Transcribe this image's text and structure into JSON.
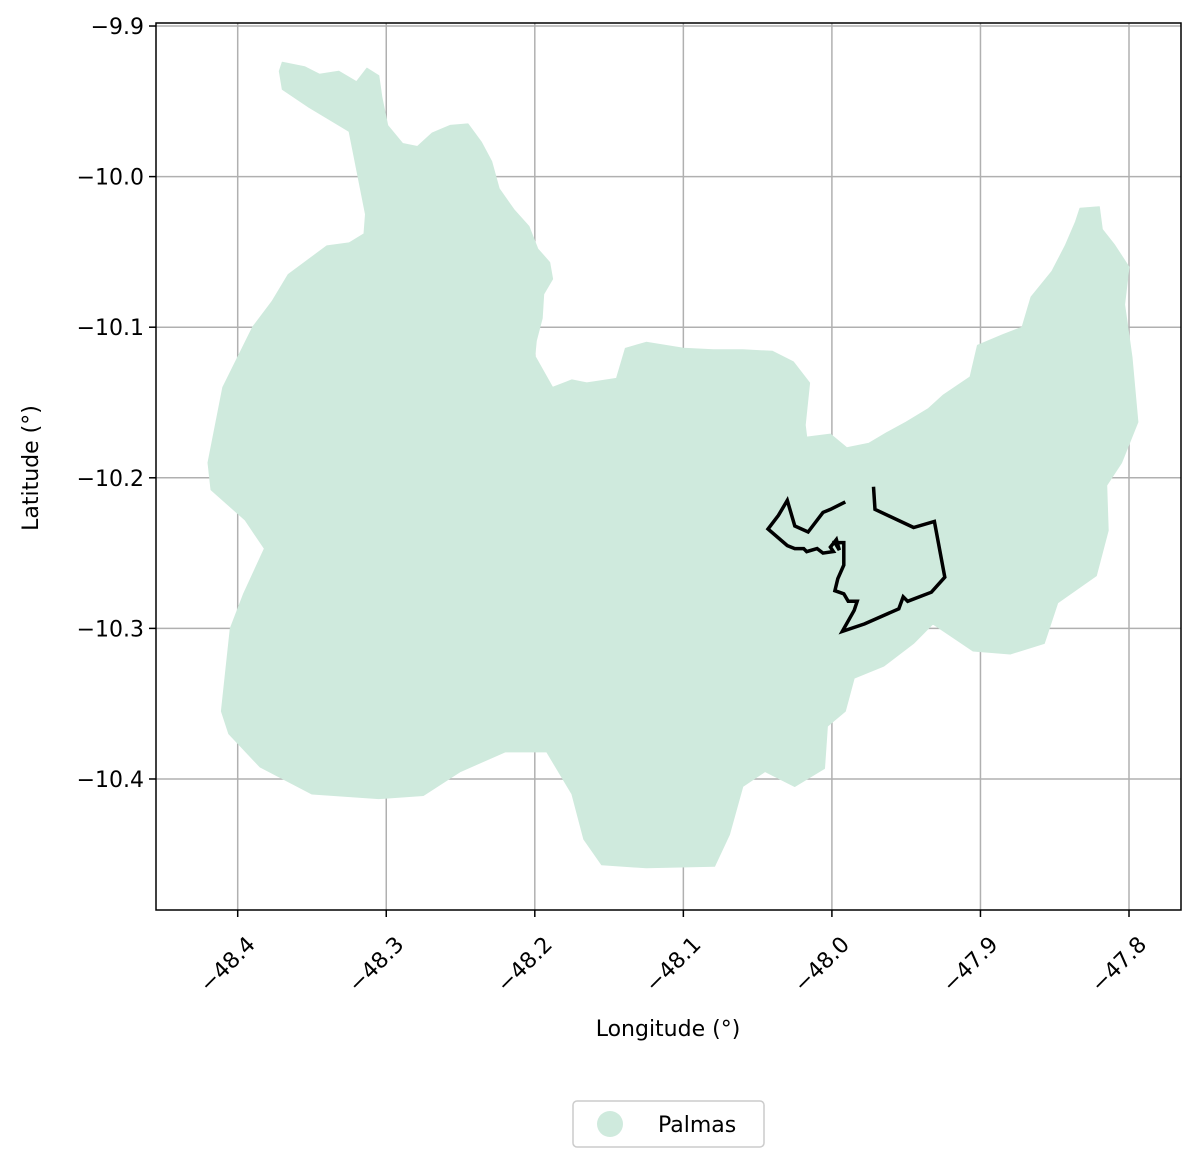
{
  "chart_data": {
    "type": "map",
    "xlabel": "Longitude (°)",
    "ylabel": "Latitude (°)",
    "xlim": [
      -48.455,
      -47.765
    ],
    "ylim": [
      -10.487,
      -9.898
    ],
    "xticks": [
      {
        "value": -48.4,
        "label": "−48.4"
      },
      {
        "value": -48.3,
        "label": "−48.3"
      },
      {
        "value": -48.2,
        "label": "−48.2"
      },
      {
        "value": -48.1,
        "label": "−48.1"
      },
      {
        "value": -48.0,
        "label": "−48.0"
      },
      {
        "value": -47.9,
        "label": "−47.9"
      },
      {
        "value": -47.8,
        "label": "−47.8"
      }
    ],
    "yticks": [
      {
        "value": -9.9,
        "label": "−9.9"
      },
      {
        "value": -10.0,
        "label": "−10.0"
      },
      {
        "value": -10.1,
        "label": "−10.1"
      },
      {
        "value": -10.2,
        "label": "−10.2"
      },
      {
        "value": -10.3,
        "label": "−10.3"
      },
      {
        "value": -10.4,
        "label": "−10.4"
      }
    ],
    "grid": true,
    "legend": {
      "placement": "bottom-center",
      "entries": [
        {
          "name": "Palmas",
          "color": "#cfeadd"
        }
      ]
    },
    "layers": [
      {
        "name": "Palmas",
        "kind": "polygon",
        "fill": "#cfeadd",
        "coords": [
          [
            -48.37,
            -9.924
          ],
          [
            -48.355,
            -9.927
          ],
          [
            -48.345,
            -9.932
          ],
          [
            -48.332,
            -9.93
          ],
          [
            -48.32,
            -9.937
          ],
          [
            -48.313,
            -9.928
          ],
          [
            -48.305,
            -9.933
          ],
          [
            -48.303,
            -9.947
          ],
          [
            -48.299,
            -9.966
          ],
          [
            -48.289,
            -9.978
          ],
          [
            -48.279,
            -9.98
          ],
          [
            -48.269,
            -9.971
          ],
          [
            -48.257,
            -9.966
          ],
          [
            -48.245,
            -9.965
          ],
          [
            -48.236,
            -9.977
          ],
          [
            -48.229,
            -9.99
          ],
          [
            -48.224,
            -10.008
          ],
          [
            -48.214,
            -10.022
          ],
          [
            -48.204,
            -10.033
          ],
          [
            -48.198,
            -10.048
          ],
          [
            -48.19,
            -10.057
          ],
          [
            -48.188,
            -10.068
          ],
          [
            -48.194,
            -10.078
          ],
          [
            -48.195,
            -10.094
          ],
          [
            -48.199,
            -10.109
          ],
          [
            -48.2,
            -10.119
          ],
          [
            -48.188,
            -10.14
          ],
          [
            -48.175,
            -10.135
          ],
          [
            -48.165,
            -10.137
          ],
          [
            -48.145,
            -10.134
          ],
          [
            -48.139,
            -10.114
          ],
          [
            -48.125,
            -10.11
          ],
          [
            -48.1,
            -10.114
          ],
          [
            -48.08,
            -10.115
          ],
          [
            -48.06,
            -10.115
          ],
          [
            -48.04,
            -10.116
          ],
          [
            -48.026,
            -10.123
          ],
          [
            -48.015,
            -10.137
          ],
          [
            -48.018,
            -10.165
          ],
          [
            -48.017,
            -10.173
          ],
          [
            -48.001,
            -10.171
          ],
          [
            -47.99,
            -10.18
          ],
          [
            -47.975,
            -10.177
          ],
          [
            -47.963,
            -10.17
          ],
          [
            -47.95,
            -10.163
          ],
          [
            -47.935,
            -10.154
          ],
          [
            -47.925,
            -10.145
          ],
          [
            -47.907,
            -10.133
          ],
          [
            -47.902,
            -10.112
          ],
          [
            -47.885,
            -10.105
          ],
          [
            -47.872,
            -10.1
          ],
          [
            -47.866,
            -10.08
          ],
          [
            -47.852,
            -10.063
          ],
          [
            -47.843,
            -10.046
          ],
          [
            -47.836,
            -10.03
          ],
          [
            -47.833,
            -10.021
          ],
          [
            -47.82,
            -10.02
          ],
          [
            -47.818,
            -10.035
          ],
          [
            -47.81,
            -10.045
          ],
          [
            -47.8,
            -10.06
          ],
          [
            -47.803,
            -10.085
          ],
          [
            -47.798,
            -10.12
          ],
          [
            -47.794,
            -10.163
          ],
          [
            -47.805,
            -10.19
          ],
          [
            -47.815,
            -10.205
          ],
          [
            -47.814,
            -10.235
          ],
          [
            -47.822,
            -10.265
          ],
          [
            -47.848,
            -10.283
          ],
          [
            -47.857,
            -10.31
          ],
          [
            -47.88,
            -10.317
          ],
          [
            -47.905,
            -10.315
          ],
          [
            -47.932,
            -10.297
          ],
          [
            -47.945,
            -10.31
          ],
          [
            -47.965,
            -10.325
          ],
          [
            -47.985,
            -10.333
          ],
          [
            -47.991,
            -10.355
          ],
          [
            -48.003,
            -10.365
          ],
          [
            -48.005,
            -10.393
          ],
          [
            -48.025,
            -10.405
          ],
          [
            -48.045,
            -10.395
          ],
          [
            -48.06,
            -10.405
          ],
          [
            -48.069,
            -10.437
          ],
          [
            -48.079,
            -10.458
          ],
          [
            -48.125,
            -10.459
          ],
          [
            -48.155,
            -10.457
          ],
          [
            -48.167,
            -10.44
          ],
          [
            -48.175,
            -10.41
          ],
          [
            -48.192,
            -10.382
          ],
          [
            -48.22,
            -10.382
          ],
          [
            -48.25,
            -10.395
          ],
          [
            -48.275,
            -10.411
          ],
          [
            -48.305,
            -10.413
          ],
          [
            -48.35,
            -10.41
          ],
          [
            -48.385,
            -10.392
          ],
          [
            -48.406,
            -10.37
          ],
          [
            -48.411,
            -10.355
          ],
          [
            -48.405,
            -10.3
          ],
          [
            -48.396,
            -10.277
          ],
          [
            -48.382,
            -10.247
          ],
          [
            -48.395,
            -10.228
          ],
          [
            -48.418,
            -10.208
          ],
          [
            -48.42,
            -10.19
          ],
          [
            -48.41,
            -10.14
          ],
          [
            -48.39,
            -10.1
          ],
          [
            -48.377,
            -10.083
          ],
          [
            -48.366,
            -10.065
          ],
          [
            -48.34,
            -10.046
          ],
          [
            -48.325,
            -10.044
          ],
          [
            -48.315,
            -10.038
          ],
          [
            -48.314,
            -10.025
          ],
          [
            -48.325,
            -9.97
          ],
          [
            -48.352,
            -9.954
          ],
          [
            -48.37,
            -9.942
          ],
          [
            -48.372,
            -9.93
          ]
        ]
      },
      {
        "name": "urban-boundary",
        "kind": "outline",
        "stroke": "#000000",
        "coords": [
          [
            -47.972,
            -10.206
          ],
          [
            -47.971,
            -10.221
          ],
          [
            -47.945,
            -10.233
          ],
          [
            -47.931,
            -10.229
          ],
          [
            -47.924,
            -10.266
          ],
          [
            -47.933,
            -10.276
          ],
          [
            -47.949,
            -10.282
          ],
          [
            -47.952,
            -10.279
          ],
          [
            -47.955,
            -10.287
          ],
          [
            -47.978,
            -10.297
          ],
          [
            -47.993,
            -10.302
          ],
          [
            -47.985,
            -10.288
          ],
          [
            -47.983,
            -10.282
          ],
          [
            -47.989,
            -10.282
          ],
          [
            -47.992,
            -10.277
          ],
          [
            -47.998,
            -10.275
          ],
          [
            -47.996,
            -10.267
          ],
          [
            -47.992,
            -10.258
          ],
          [
            -47.992,
            -10.243
          ],
          [
            -47.998,
            -10.243
          ],
          [
            -47.995,
            -10.248
          ],
          [
            -47.997,
            -10.241
          ],
          [
            -48.001,
            -10.246
          ],
          [
            -47.999,
            -10.249
          ],
          [
            -48.006,
            -10.25
          ],
          [
            -48.01,
            -10.247
          ],
          [
            -48.017,
            -10.249
          ],
          [
            -48.019,
            -10.247
          ],
          [
            -48.025,
            -10.247
          ],
          [
            -48.03,
            -10.245
          ],
          [
            -48.043,
            -10.234
          ],
          [
            -48.036,
            -10.225
          ],
          [
            -48.03,
            -10.215
          ],
          [
            -48.025,
            -10.232
          ],
          [
            -48.016,
            -10.236
          ],
          [
            -48.006,
            -10.223
          ],
          [
            -48.001,
            -10.221
          ],
          [
            -47.991,
            -10.216
          ]
        ]
      }
    ]
  }
}
